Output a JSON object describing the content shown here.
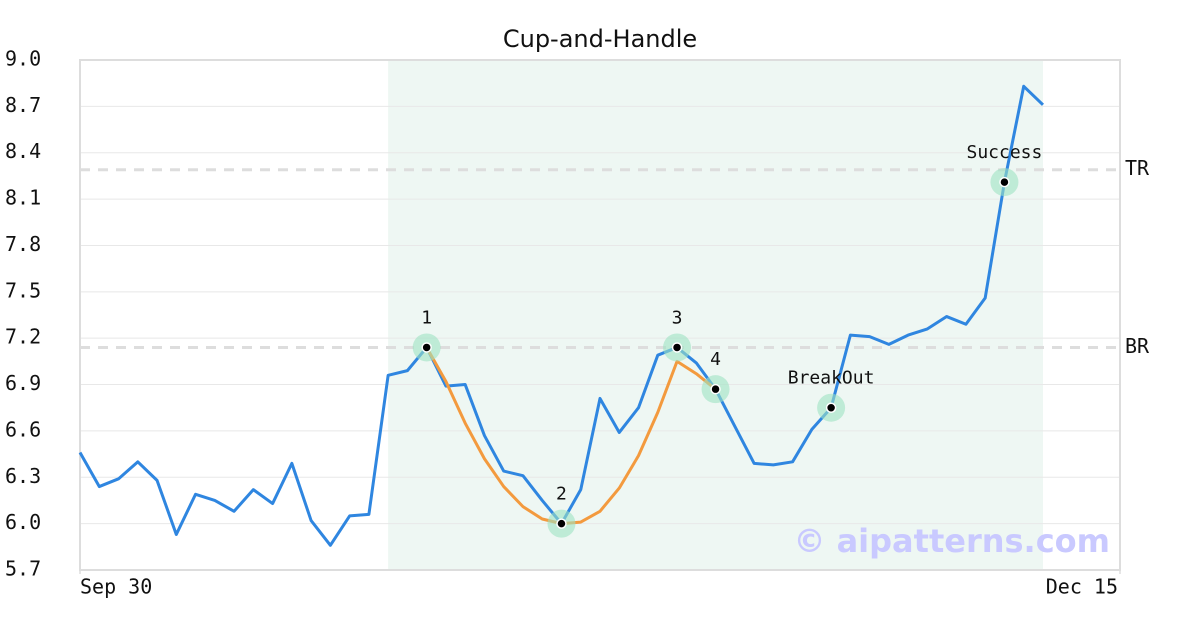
{
  "chart_data": {
    "type": "line",
    "title": "Cup-and-Handle",
    "x": [
      0,
      1,
      2,
      3,
      4,
      5,
      6,
      7,
      8,
      9,
      10,
      11,
      12,
      13,
      14,
      15,
      16,
      17,
      18,
      19,
      20,
      21,
      22,
      23,
      24,
      25,
      26,
      27,
      28,
      29,
      30,
      31,
      32,
      33,
      34,
      35,
      36,
      37,
      38,
      39,
      40,
      41,
      42,
      43,
      44,
      45,
      46,
      47,
      48,
      49,
      50
    ],
    "xlim": [
      0,
      54
    ],
    "xticks": [
      {
        "value": 0,
        "label": "Sep 30"
      },
      {
        "value": 54,
        "label": "Dec 15"
      }
    ],
    "ylim": [
      5.7,
      9.0
    ],
    "yticks": [
      5.7,
      {
        "value": 6,
        "label": "6.0"
      },
      6.3,
      6.6,
      6.9,
      7.2,
      7.5,
      7.8,
      8.1,
      8.4,
      8.7,
      {
        "value": 9,
        "label": "9.0"
      }
    ],
    "grid": true,
    "series": [
      {
        "color": "#2f86e0",
        "values": [
          6.46,
          6.24,
          6.29,
          6.4,
          6.28,
          5.93,
          6.19,
          6.15,
          6.08,
          6.22,
          6.13,
          6.39,
          6.02,
          5.86,
          6.05,
          6.06,
          6.96,
          6.99,
          7.14,
          6.89,
          6.9,
          6.57,
          6.34,
          6.31,
          6.15,
          6.0,
          6.22,
          6.81,
          6.59,
          6.75,
          7.09,
          7.14,
          7.04,
          6.87,
          6.63,
          6.39,
          6.38,
          6.4,
          6.61,
          6.75,
          7.22,
          7.21,
          7.16,
          7.22,
          7.26,
          7.34,
          7.29,
          7.46,
          8.21,
          8.83,
          8.71
        ]
      },
      {
        "color": "#f39a3e",
        "values": [
          null,
          null,
          null,
          null,
          null,
          null,
          null,
          null,
          null,
          null,
          null,
          null,
          null,
          null,
          null,
          null,
          null,
          null,
          7.14,
          6.92,
          6.65,
          6.42,
          6.24,
          6.11,
          6.03,
          6.0,
          6.01,
          6.08,
          6.23,
          6.44,
          6.72,
          7.05,
          6.97,
          6.87,
          null,
          null,
          null,
          null,
          null,
          null,
          null,
          null,
          null,
          null,
          null,
          null,
          null,
          null,
          null,
          null,
          null
        ]
      }
    ],
    "shaded_x": [
      16,
      50
    ],
    "shade_color": "#eef7f3",
    "hlines": [
      {
        "label": "TR",
        "value": 8.29
      },
      {
        "label": "BR",
        "value": 7.14
      }
    ],
    "points": [
      {
        "label": "1",
        "x": 18,
        "y": 7.14
      },
      {
        "label": "2",
        "x": 25,
        "y": 6.0
      },
      {
        "label": "3",
        "x": 31,
        "y": 7.14
      },
      {
        "label": "4",
        "x": 33,
        "y": 6.87
      },
      {
        "label": "BreakOut",
        "x": 39,
        "y": 6.75
      },
      {
        "label": "Success",
        "x": 48,
        "y": 8.21
      }
    ],
    "watermark": "© aipatterns.com"
  }
}
